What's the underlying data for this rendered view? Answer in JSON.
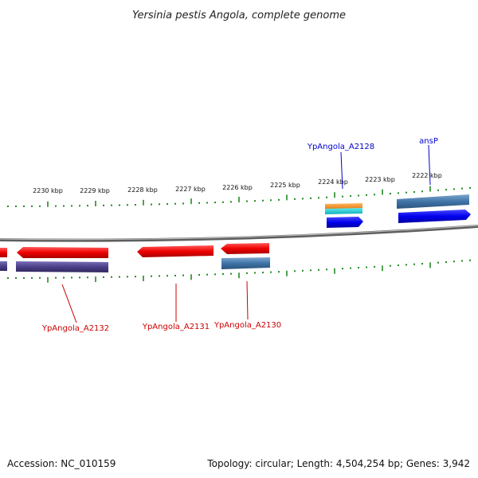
{
  "title": "Yersinia pestis Angola, complete genome",
  "footer": {
    "accession": "Accession: NC_010159",
    "summary": "Topology: circular; Length: 4,504,254 bp; Genes: 3,942"
  },
  "scale_labels": [
    "2230 kbp",
    "2229 kbp",
    "2228 kbp",
    "2227 kbp",
    "2226 kbp",
    "2225 kbp",
    "2224 kbp",
    "2223 kbp",
    "2222 kbp"
  ],
  "genes": [
    {
      "label": "ansP",
      "color": "#0000cc"
    },
    {
      "label": "YpAngola_A2128",
      "color": "#0000cc"
    },
    {
      "label": "YpAngola_A2130",
      "color": "#cc0000"
    },
    {
      "label": "YpAngola_A2131",
      "color": "#cc0000"
    },
    {
      "label": "YpAngola_A2132",
      "color": "#cc0000"
    }
  ],
  "colors": {
    "backbone": "#7a7a7a",
    "ticks": "#228b22",
    "forward_cds": "#0000ee",
    "reverse_cds": "#ee0000",
    "steel_blue_feature": "#3f74a8",
    "purple_feature": "#4b3f88",
    "orange_feature": "#f08c1e",
    "cyan_feature": "#19c8d2"
  }
}
